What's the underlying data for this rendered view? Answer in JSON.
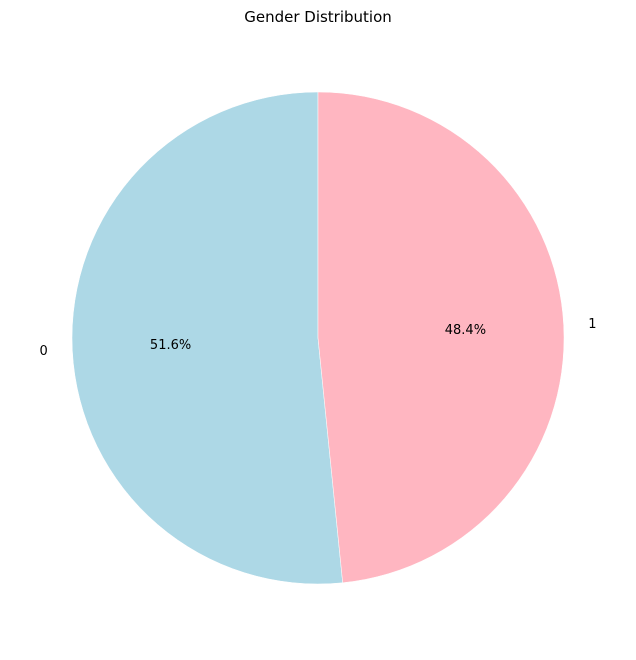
{
  "chart_data": {
    "type": "pie",
    "title": "Gender Distribution",
    "categories": [
      "0",
      "1"
    ],
    "values": [
      51.6,
      48.4
    ],
    "percent_labels": [
      "51.6%",
      "48.4%"
    ],
    "colors": [
      "#add8e6",
      "#ffb6c1"
    ],
    "start_angle_deg": 90,
    "direction": "counterclockwise",
    "legend": "none",
    "grid": false
  }
}
